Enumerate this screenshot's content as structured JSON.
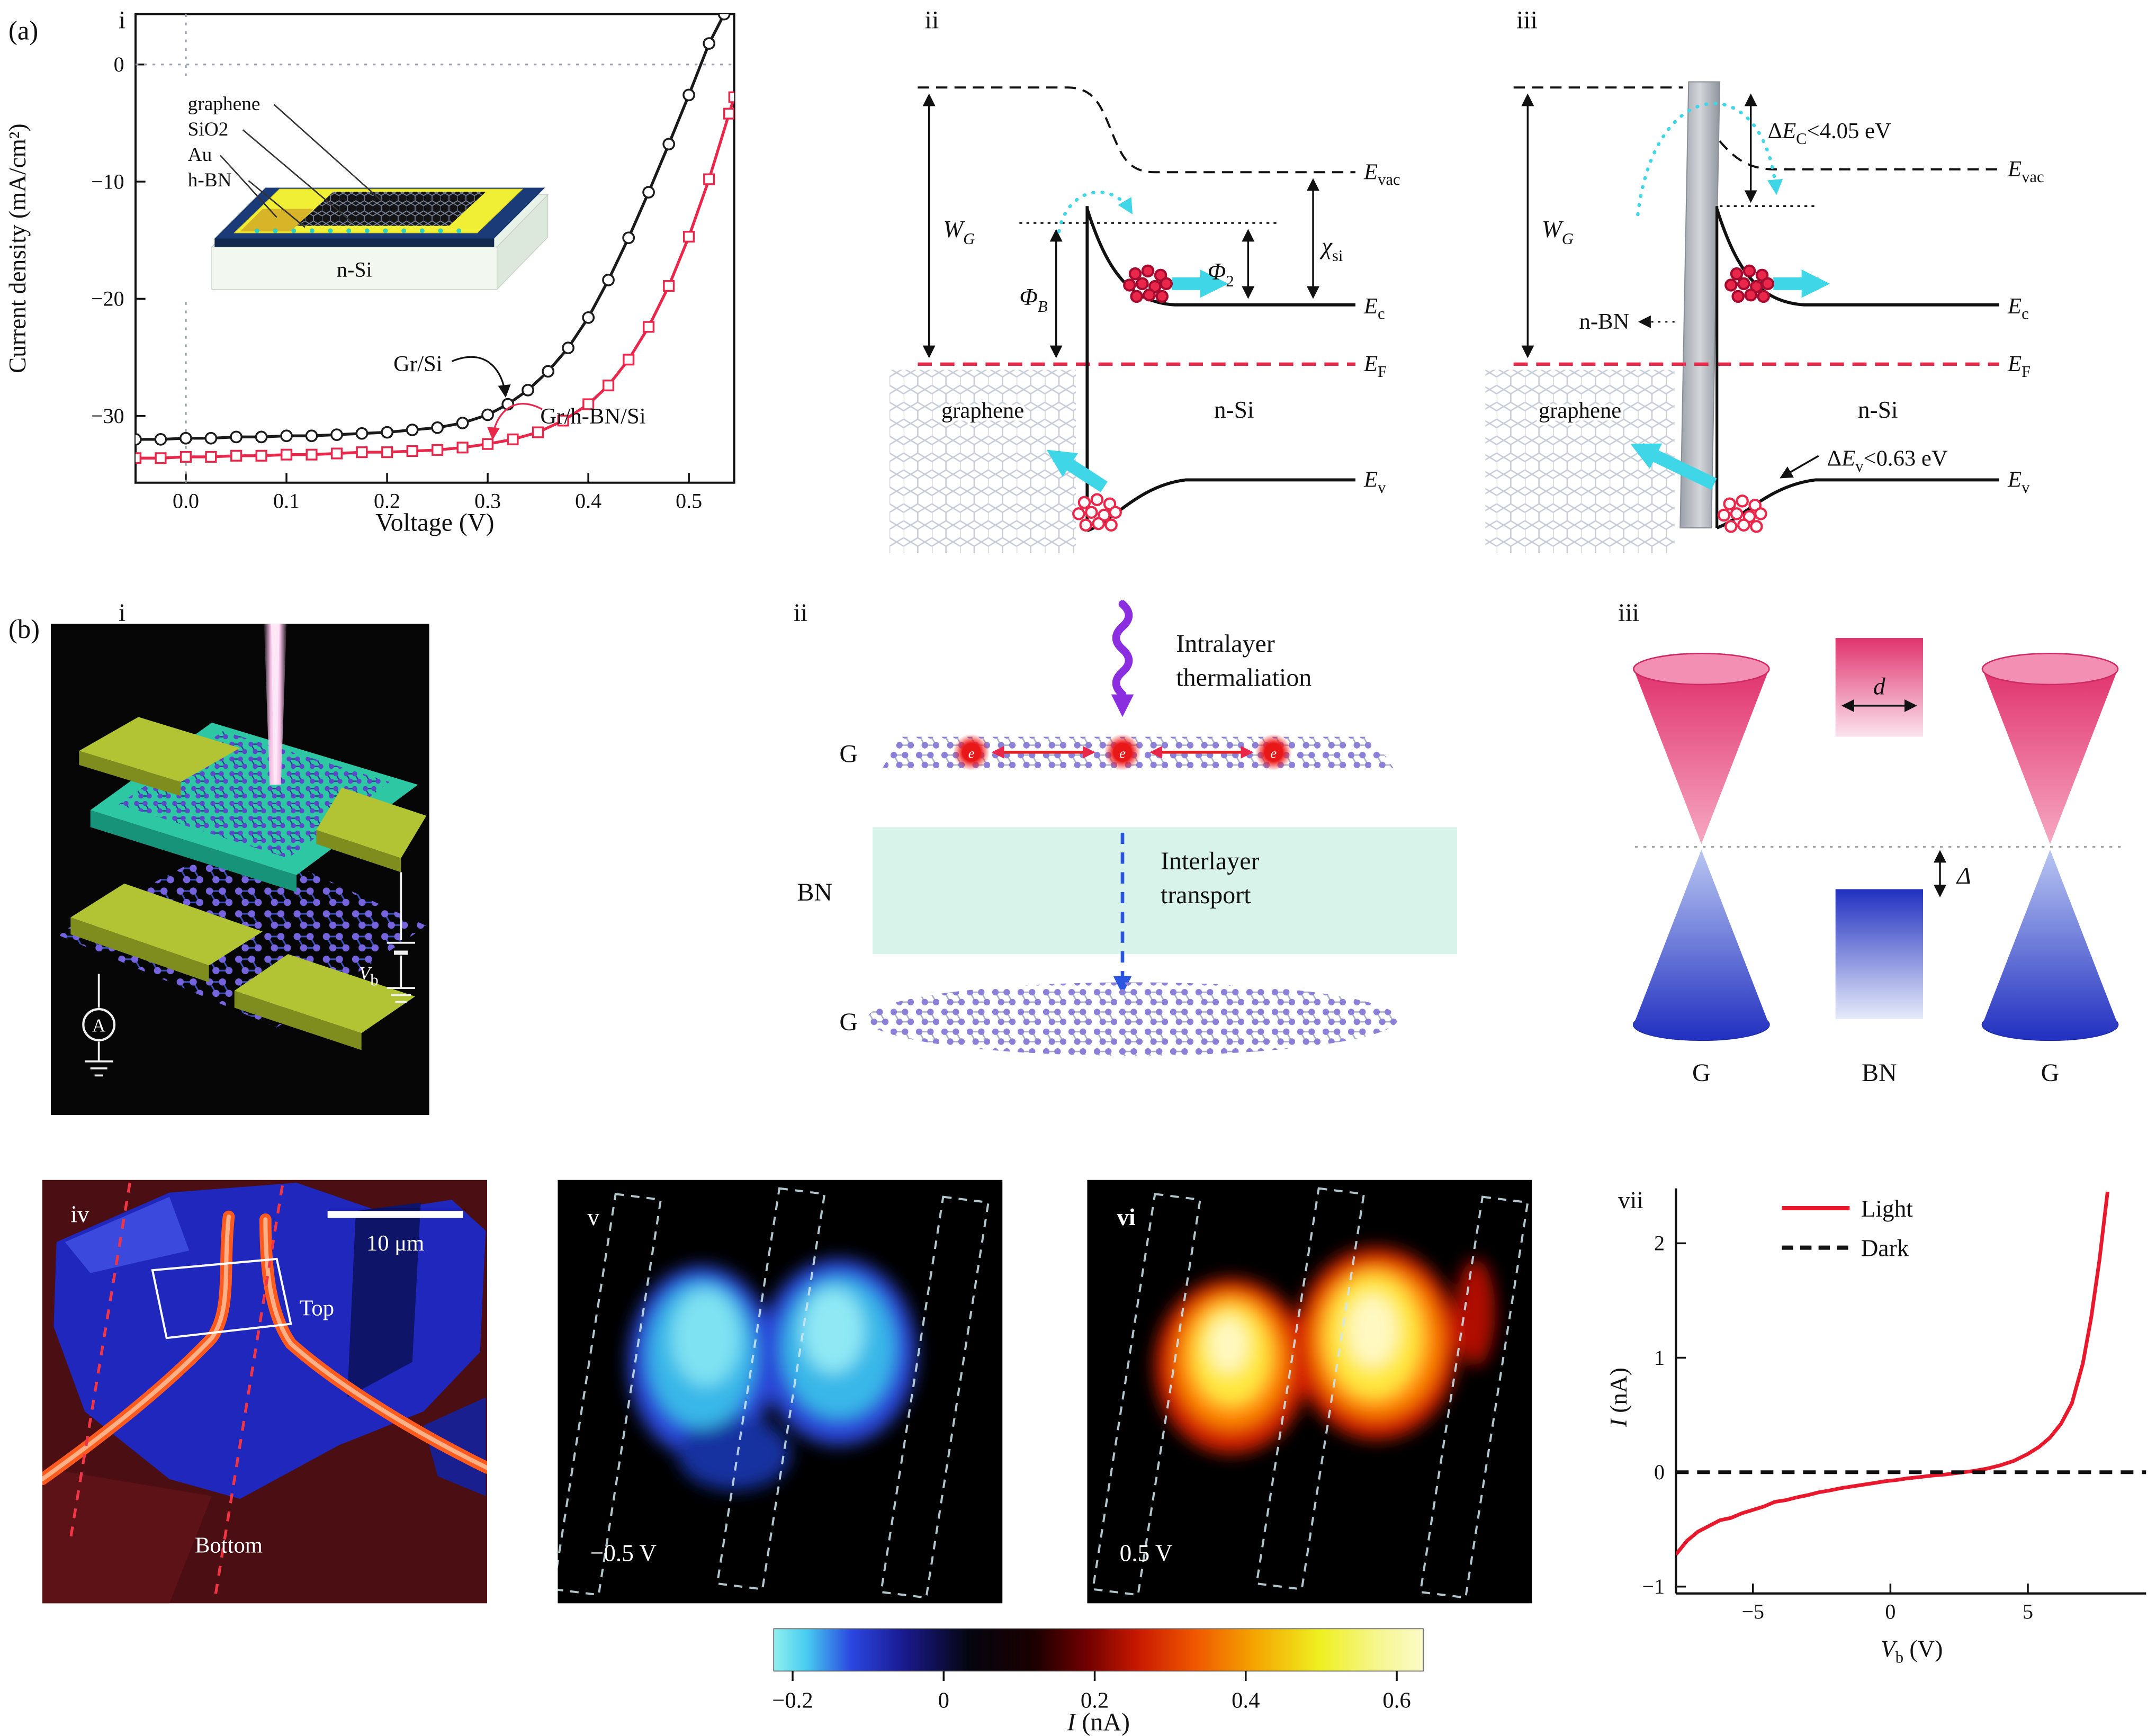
{
  "panel_a": {
    "label": "(a)",
    "i": {
      "num": "i",
      "ylabel": "Current density (mA/cm²)",
      "xlabel": "Voltage (V)",
      "curve_black": "Gr/Si",
      "curve_red": "Gr/h-BN/Si",
      "inset": {
        "layer_graphene": "graphene",
        "layer_sio2": "SiO2",
        "layer_au": "Au",
        "layer_hbn": "h-BN",
        "substrate": "n-Si"
      }
    },
    "ii": {
      "num": "ii",
      "wg_main": "W",
      "wg_sub": "G",
      "phib_main": "Φ",
      "phib_sub": "B",
      "phi2_main": "Φ",
      "phi2_sub": "2",
      "chi_main": "χ",
      "chi_sub": "si",
      "evac_main": "E",
      "evac_sub": "vac",
      "ec_main": "E",
      "ec_sub": "c",
      "ef_main": "E",
      "ef_sub": "F",
      "ev_main": "E",
      "ev_sub": "v",
      "graphene": "graphene",
      "nsi": "n-Si"
    },
    "iii": {
      "num": "iii",
      "wg_main": "W",
      "wg_sub": "G",
      "dec_delta": "Δ",
      "dec_e": "E",
      "dec_sub": "C",
      "dec_rest": "<4.05 eV",
      "dev_delta": "Δ",
      "dev_e": "E",
      "dev_sub": "v",
      "dev_rest": "<0.63 eV",
      "nbn": "n-BN",
      "evac_main": "E",
      "evac_sub": "vac",
      "ec_main": "E",
      "ec_sub": "c",
      "ef_main": "E",
      "ef_sub": "F",
      "ev_main": "E",
      "ev_sub": "v",
      "graphene": "graphene",
      "nsi": "n-Si"
    }
  },
  "panel_b": {
    "label": "(b)",
    "i": {
      "num": "i",
      "ammeter": "A",
      "vb_main": "V",
      "vb_sub": "b"
    },
    "ii": {
      "num": "ii",
      "intra1": "Intralayer",
      "intra2": "thermaliation",
      "g_top": "G",
      "bn": "BN",
      "inter1": "Interlayer",
      "inter2": "transport",
      "g_bottom": "G",
      "electron": "e"
    },
    "iii": {
      "num": "iii",
      "d": "d",
      "delta": "Δ",
      "g_left": "G",
      "bn": "BN",
      "g_right": "G"
    },
    "iv": {
      "num": "iv",
      "scalebar": "10 μm",
      "top": "Top",
      "bottom": "Bottom"
    },
    "v": {
      "num": "v",
      "bias": "−0.5 V"
    },
    "vi": {
      "num": "vi",
      "bias": "0.5 V"
    },
    "vii": {
      "num": "vii",
      "legend_light": "Light",
      "legend_dark": "Dark",
      "ylabel_main": "I",
      "ylabel_rest": " (nA)",
      "xlabel_main": "V",
      "xlabel_sub": "b",
      "xlabel_rest": " (V)"
    }
  },
  "colorbar": {
    "label_main": "I",
    "label_rest": " (nA)",
    "ticks": [
      "−0.2",
      "0",
      "0.2",
      "0.4",
      "0.6"
    ],
    "tick_values": [
      -0.2,
      0,
      0.2,
      0.4,
      0.6
    ],
    "vmin": -0.225,
    "vmax": 0.635,
    "stops": [
      [
        0,
        "#90efef"
      ],
      [
        0.05,
        "#48cdf0"
      ],
      [
        0.12,
        "#2a46e0"
      ],
      [
        0.2,
        "#1a1a90"
      ],
      [
        0.3,
        "#050510"
      ],
      [
        0.4,
        "#1a0000"
      ],
      [
        0.48,
        "#6e0000"
      ],
      [
        0.56,
        "#c81800"
      ],
      [
        0.65,
        "#f05800"
      ],
      [
        0.74,
        "#f4a400"
      ],
      [
        0.84,
        "#efef20"
      ],
      [
        0.93,
        "#f6f690"
      ],
      [
        1,
        "#fbfbc8"
      ]
    ]
  },
  "chart_data": [
    {
      "id": "jv",
      "type": "line",
      "title": "Graphene/Si vs Graphene/h-BN/Si solar cell J-V curves",
      "xlabel": "Voltage (V)",
      "ylabel": "Current density (mA/cm²)",
      "xlim": [
        -0.05,
        0.545
      ],
      "ylim": [
        -35.7,
        4.3
      ],
      "xticks": [
        0,
        0.1,
        0.2,
        0.3,
        0.4,
        0.5
      ],
      "xtick_labels": [
        "0.0",
        "0.1",
        "0.2",
        "0.3",
        "0.4",
        "0.5"
      ],
      "yticks": [
        0,
        -10,
        -20,
        -30
      ],
      "ytick_labels": [
        "0",
        "−10",
        "−20",
        "−30"
      ],
      "grid": false,
      "series": [
        {
          "name": "Gr/Si",
          "color": "#1a1a1a",
          "marker": "circle",
          "style": "solid",
          "x": [
            -0.05,
            -0.025,
            0,
            0.025,
            0.05,
            0.075,
            0.1,
            0.125,
            0.15,
            0.175,
            0.2,
            0.225,
            0.25,
            0.275,
            0.3,
            0.32,
            0.34,
            0.36,
            0.38,
            0.4,
            0.42,
            0.44,
            0.46,
            0.48,
            0.5,
            0.52,
            0.535
          ],
          "y": [
            -32.0,
            -32.0,
            -31.9,
            -31.9,
            -31.8,
            -31.8,
            -31.7,
            -31.7,
            -31.6,
            -31.5,
            -31.4,
            -31.2,
            -31.0,
            -30.6,
            -29.9,
            -29.0,
            -27.8,
            -26.2,
            -24.2,
            -21.6,
            -18.4,
            -14.8,
            -10.9,
            -6.8,
            -2.6,
            1.8,
            4.3
          ]
        },
        {
          "name": "Gr/h-BN/Si",
          "color": "#e8274b",
          "marker": "square",
          "style": "solid",
          "x": [
            -0.05,
            -0.025,
            0,
            0.025,
            0.05,
            0.075,
            0.1,
            0.125,
            0.15,
            0.175,
            0.2,
            0.225,
            0.25,
            0.275,
            0.3,
            0.325,
            0.35,
            0.375,
            0.4,
            0.42,
            0.44,
            0.46,
            0.48,
            0.5,
            0.52,
            0.54,
            0.545
          ],
          "y": [
            -33.6,
            -33.6,
            -33.5,
            -33.5,
            -33.4,
            -33.4,
            -33.3,
            -33.3,
            -33.2,
            -33.1,
            -33.1,
            -33.0,
            -32.9,
            -32.7,
            -32.4,
            -32.0,
            -31.4,
            -30.4,
            -29.0,
            -27.4,
            -25.2,
            -22.4,
            -18.9,
            -14.7,
            -9.8,
            -4.2,
            -2.8
          ]
        }
      ]
    },
    {
      "id": "iv",
      "type": "line",
      "title": "Photocurrent I-V under light and dark",
      "xlabel": "Vb (V)",
      "ylabel": "I (nA)",
      "xlim": [
        -7.8,
        9.3
      ],
      "ylim": [
        -1.06,
        2.48
      ],
      "xticks": [
        -5,
        0,
        5
      ],
      "xtick_labels": [
        "−5",
        "0",
        "5"
      ],
      "yticks": [
        -1,
        0,
        1,
        2
      ],
      "ytick_labels": [
        "−1",
        "0",
        "1",
        "2"
      ],
      "grid": false,
      "series": [
        {
          "name": "Light",
          "color": "#e8192c",
          "style": "solid",
          "x": [
            -7.8,
            -7.4,
            -7.0,
            -6.6,
            -6.2,
            -5.8,
            -5.4,
            -5.0,
            -4.6,
            -4.2,
            -3.8,
            -3.4,
            -3.0,
            -2.6,
            -2.2,
            -1.8,
            -1.4,
            -1.0,
            -0.6,
            -0.2,
            0.2,
            0.6,
            1.0,
            1.5,
            2.0,
            2.5,
            3.0,
            3.5,
            4.0,
            4.5,
            5.0,
            5.4,
            5.8,
            6.2,
            6.6,
            7.0,
            7.3,
            7.6,
            7.9
          ],
          "y": [
            -0.72,
            -0.6,
            -0.52,
            -0.47,
            -0.42,
            -0.4,
            -0.36,
            -0.33,
            -0.3,
            -0.26,
            -0.245,
            -0.22,
            -0.2,
            -0.175,
            -0.16,
            -0.14,
            -0.125,
            -0.11,
            -0.095,
            -0.08,
            -0.07,
            -0.055,
            -0.045,
            -0.03,
            -0.02,
            -0.005,
            0.01,
            0.03,
            0.06,
            0.1,
            0.16,
            0.22,
            0.3,
            0.42,
            0.6,
            0.95,
            1.35,
            1.85,
            2.45
          ]
        },
        {
          "name": "Dark",
          "color": "#111111",
          "style": "dashed",
          "x": [
            -7.8,
            9.3
          ],
          "y": [
            0,
            0
          ]
        }
      ]
    }
  ]
}
